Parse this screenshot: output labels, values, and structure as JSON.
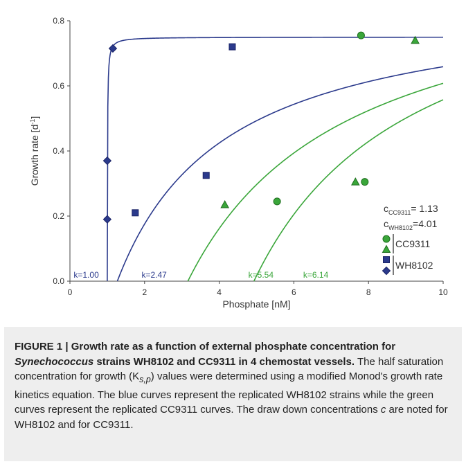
{
  "colors": {
    "wh8102": "#2b3a8c",
    "cc9311": "#3aa63a",
    "axis": "#444444",
    "text": "#333333"
  },
  "chart_data": {
    "type": "scatter",
    "xlabel": "Phosphate [nM]",
    "ylabel": "Growth rate [d-1]",
    "ylabel_main": "Growth rate [d",
    "ylabel_sup": "-1",
    "ylabel_end": "]",
    "xlim": [
      0,
      10
    ],
    "ylim": [
      0,
      0.8
    ],
    "xticks": [
      "0",
      "2",
      "4",
      "6",
      "8",
      "10"
    ],
    "yticks": [
      "0.0",
      "0.2",
      "0.4",
      "0.6",
      "0.8"
    ],
    "series": [
      {
        "name": "WH8102",
        "marker": "diamond",
        "color": "wh8102",
        "x": [
          1.0,
          1.0,
          1.15
        ],
        "y": [
          0.19,
          0.37,
          0.715
        ]
      },
      {
        "name": "WH8102",
        "marker": "square",
        "color": "wh8102",
        "x": [
          1.75,
          3.65,
          4.35
        ],
        "y": [
          0.21,
          0.325,
          0.72
        ]
      },
      {
        "name": "CC9311",
        "marker": "triangle",
        "color": "cc9311",
        "x": [
          4.15,
          7.65,
          9.25
        ],
        "y": [
          0.235,
          0.305,
          0.74
        ]
      },
      {
        "name": "CC9311",
        "marker": "circle",
        "color": "cc9311",
        "x": [
          5.55,
          7.9,
          7.8
        ],
        "y": [
          0.245,
          0.305,
          0.755
        ]
      }
    ],
    "curves": [
      {
        "color": "wh8102",
        "umax": 0.75,
        "ks": 0.006,
        "c": 1.0,
        "label": "k=1.00",
        "label_x": 0.1
      },
      {
        "color": "wh8102",
        "umax": 0.88,
        "ks": 2.93,
        "c": 1.27,
        "label": "k=2.47",
        "label_x": 1.92
      },
      {
        "color": "cc9311",
        "umax": 0.99,
        "ks": 4.3,
        "c": 3.16,
        "label": "k=5.54",
        "label_x": 4.78
      },
      {
        "color": "cc9311",
        "umax": 1.03,
        "ks": 4.3,
        "c": 4.93,
        "label": "k=6.14",
        "label_x": 6.25
      }
    ],
    "annotations": {
      "c_cc9311_main": "c",
      "c_cc9311_sub": "CC9311",
      "c_cc9311_val": "= 1.13",
      "c_wh8102_main": "c",
      "c_wh8102_sub": "WH8102",
      "c_wh8102_val": "=4.01"
    },
    "legend": {
      "placement": "bottom-right",
      "entries": [
        "CC9311",
        "WH8102"
      ]
    }
  },
  "caption": {
    "figure": "FIGURE 1 | Growth rate as a function of external phosphate concentration for ",
    "species": "Synechococcus",
    "title_rest": " strains WH8102 and CC9311 in 4 chemostat vessels.",
    "body1": " The half saturation concentration for growth (K",
    "ks_sub": "s,p",
    "body2": ") values were determined using a modified Monod's growth rate kinetics equation. The blue curves represent the replicated WH8102 strains while the green curves represent the replicated CC9311 curves. The draw down concentrations ",
    "c_ital": "c",
    "body3": " are noted for WH8102 and for CC9311."
  }
}
